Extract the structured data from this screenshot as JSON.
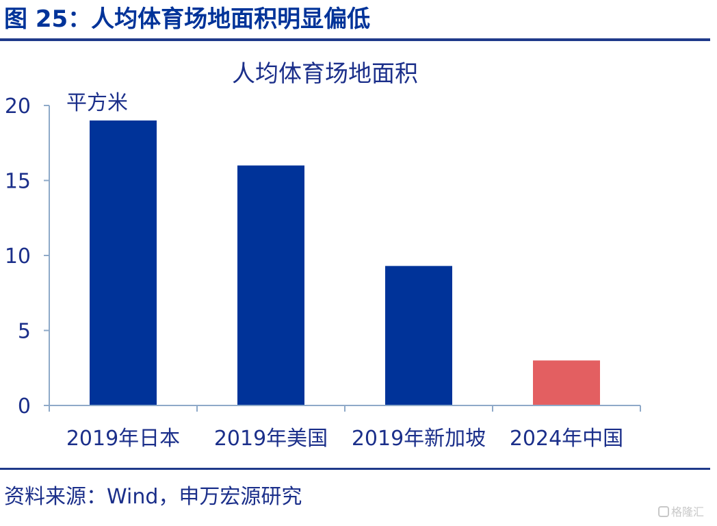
{
  "figure": {
    "title": "图 25：人均体育场地面积明显偏低",
    "source": "资料来源：Wind，申万宏源研究",
    "watermark": "格隆汇"
  },
  "chart_data": {
    "type": "bar",
    "title": "人均体育场地面积",
    "unit_label": "平方米",
    "categories": [
      "2019年日本",
      "2019年美国",
      "2019年新加坡",
      "2024年中国"
    ],
    "values": [
      19,
      16,
      9.3,
      3
    ],
    "ylim": [
      0,
      20
    ],
    "yticks": [
      0,
      5,
      10,
      15,
      20
    ],
    "bar_colors": [
      "#003399",
      "#003399",
      "#003399",
      "#e35f61"
    ],
    "axis_color": "#8ea9c8",
    "text_color": "#1b2f8a"
  }
}
